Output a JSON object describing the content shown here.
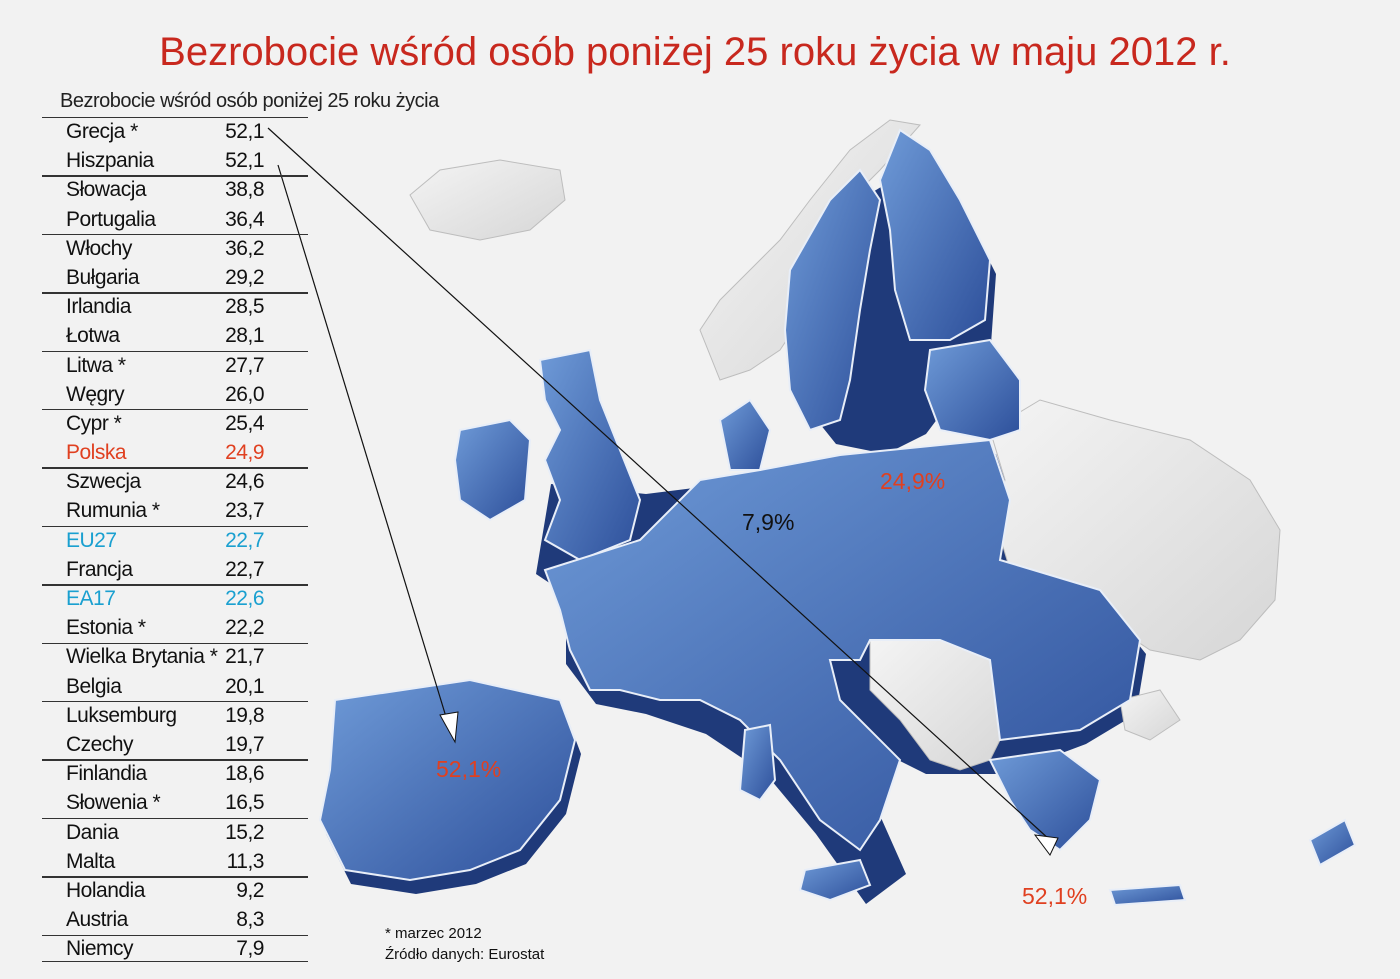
{
  "title": "Bezrobocie wśród osób poniżej 25 roku życia w maju 2012 r.",
  "table": {
    "header": "Bezrobocie wśród osób poniżej 25 roku życia",
    "rows": [
      {
        "name": "Grecja *",
        "value": "52,1",
        "highlight": ""
      },
      {
        "name": "Hiszpania",
        "value": "52,1",
        "highlight": ""
      },
      {
        "name": "Słowacja",
        "value": "38,8",
        "highlight": ""
      },
      {
        "name": "Portugalia",
        "value": "36,4",
        "highlight": ""
      },
      {
        "name": "Włochy",
        "value": "36,2",
        "highlight": ""
      },
      {
        "name": "Bułgaria",
        "value": "29,2",
        "highlight": ""
      },
      {
        "name": "Irlandia",
        "value": "28,5",
        "highlight": ""
      },
      {
        "name": "Łotwa",
        "value": "28,1",
        "highlight": ""
      },
      {
        "name": "Litwa *",
        "value": "27,7",
        "highlight": ""
      },
      {
        "name": "Węgry",
        "value": "26,0",
        "highlight": ""
      },
      {
        "name": "Cypr *",
        "value": "25,4",
        "highlight": ""
      },
      {
        "name": "Polska",
        "value": "24,9",
        "highlight": "pl"
      },
      {
        "name": "Szwecja",
        "value": "24,6",
        "highlight": ""
      },
      {
        "name": "Rumunia *",
        "value": "23,7",
        "highlight": ""
      },
      {
        "name": "EU27",
        "value": "22,7",
        "highlight": "eu"
      },
      {
        "name": "Francja",
        "value": "22,7",
        "highlight": ""
      },
      {
        "name": "EA17",
        "value": "22,6",
        "highlight": "eu"
      },
      {
        "name": "Estonia *",
        "value": "22,2",
        "highlight": ""
      },
      {
        "name": "Wielka Brytania *",
        "value": "21,7",
        "highlight": ""
      },
      {
        "name": "Belgia",
        "value": "20,1",
        "highlight": ""
      },
      {
        "name": "Luksemburg",
        "value": "19,8",
        "highlight": ""
      },
      {
        "name": "Czechy",
        "value": "19,7",
        "highlight": ""
      },
      {
        "name": "Finlandia",
        "value": "18,6",
        "highlight": ""
      },
      {
        "name": "Słowenia *",
        "value": "16,5",
        "highlight": ""
      },
      {
        "name": "Dania",
        "value": "15,2",
        "highlight": ""
      },
      {
        "name": "Malta",
        "value": "11,3",
        "highlight": ""
      },
      {
        "name": "Holandia",
        "value": "9,2",
        "highlight": ""
      },
      {
        "name": "Austria",
        "value": "8,3",
        "highlight": ""
      },
      {
        "name": "Niemcy",
        "value": "7,9",
        "highlight": ""
      }
    ]
  },
  "map_labels": {
    "poland": "24,9%",
    "germany": "7,9%",
    "spain": "52,1%",
    "greece": "52,1%"
  },
  "footnote": {
    "note": "* marzec 2012",
    "source": "Źródło danych: Eurostat"
  },
  "colors": {
    "title": "#c8281e",
    "poland_highlight": "#e04020",
    "eu_highlight": "#1aa0d0",
    "country_fill": "#3a5fa8",
    "non_eu_fill": "#e2e2e2"
  }
}
